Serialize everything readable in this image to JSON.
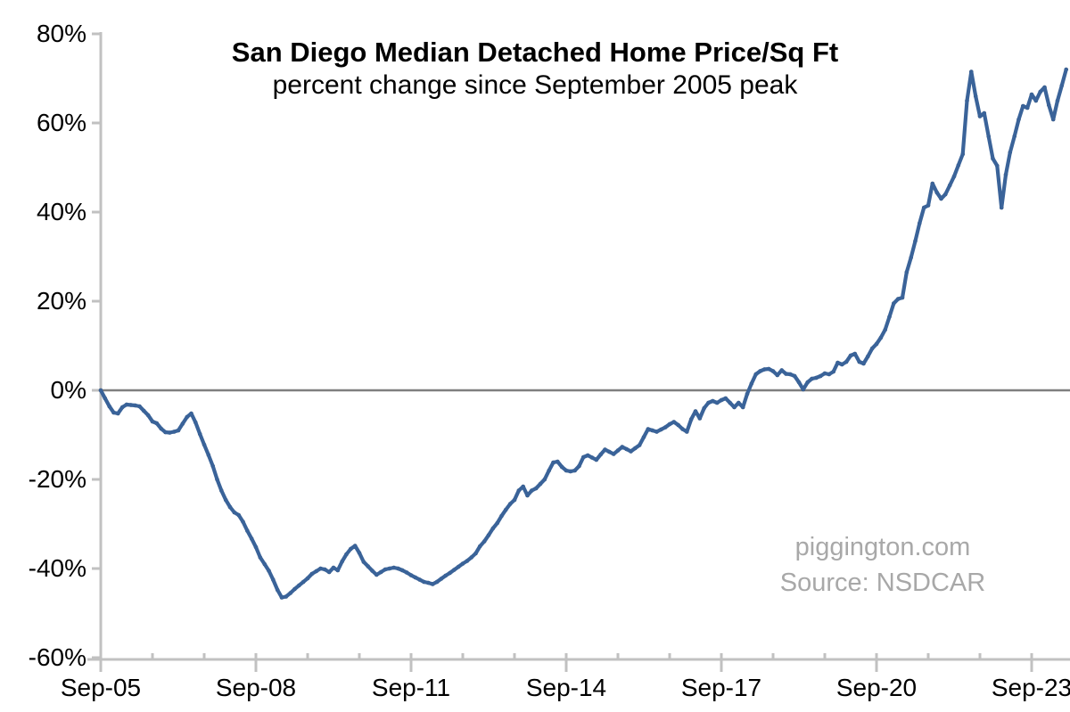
{
  "chart": {
    "title": "San Diego Median Detached Home Price/Sq Ft",
    "subtitle": "percent change since September 2005 peak",
    "watermark_line1": "piggington.com",
    "watermark_line2": "Source: NSDCAR"
  },
  "chart_data": {
    "type": "line",
    "title": "San Diego Median Detached Home Price/Sq Ft",
    "subtitle": "percent change since September 2005 peak",
    "x_start": "2005-09",
    "x_end": "2024-05",
    "x_frequency": "monthly",
    "x_tick_labels": [
      "Sep-05",
      "Sep-08",
      "Sep-11",
      "Sep-14",
      "Sep-17",
      "Sep-20",
      "Sep-23"
    ],
    "y_tick_labels": [
      "80%",
      "60%",
      "40%",
      "20%",
      "0%",
      "-20%",
      "-40%",
      "-60%"
    ],
    "ylim": [
      -60,
      80
    ],
    "y_unit": "%",
    "grid": "zero-line-only",
    "legend": "none",
    "line_color": "#3a6399",
    "marker_color": "#1f3a5e",
    "axis_color": "#c1c1c1",
    "zero_line_color": "#7f7f7f",
    "text_color": "#000000",
    "watermark_color": "#a8a8a8",
    "series": [
      {
        "name": "San Diego median detached home price/sq ft, % change vs Sep-2005 peak",
        "values": [
          0.0,
          -1.8,
          -3.6,
          -5.0,
          -5.2,
          -3.8,
          -3.2,
          -3.3,
          -3.4,
          -3.6,
          -4.6,
          -5.6,
          -7.0,
          -7.4,
          -8.6,
          -9.4,
          -9.5,
          -9.3,
          -9.0,
          -7.5,
          -6.0,
          -5.2,
          -7.2,
          -9.8,
          -12.2,
          -14.5,
          -17.0,
          -20.0,
          -22.5,
          -24.6,
          -26.2,
          -27.4,
          -28.0,
          -29.5,
          -31.5,
          -33.3,
          -35.2,
          -37.5,
          -39.0,
          -40.5,
          -42.5,
          -44.8,
          -46.5,
          -46.3,
          -45.5,
          -44.6,
          -43.8,
          -43.0,
          -42.2,
          -41.2,
          -40.6,
          -40.0,
          -40.2,
          -40.8,
          -39.8,
          -40.4,
          -38.4,
          -36.8,
          -35.6,
          -34.9,
          -36.5,
          -38.5,
          -39.5,
          -40.5,
          -41.4,
          -40.8,
          -40.2,
          -40.0,
          -39.8,
          -40.0,
          -40.4,
          -40.9,
          -41.5,
          -42.0,
          -42.5,
          -43.0,
          -43.2,
          -43.5,
          -43.0,
          -42.3,
          -41.6,
          -41.0,
          -40.3,
          -39.6,
          -38.9,
          -38.3,
          -37.5,
          -36.6,
          -35.0,
          -33.9,
          -32.5,
          -31.0,
          -29.8,
          -28.2,
          -26.8,
          -25.5,
          -24.6,
          -22.5,
          -21.6,
          -23.6,
          -22.5,
          -22.0,
          -21.0,
          -20.0,
          -18.0,
          -16.2,
          -16.0,
          -17.2,
          -18.0,
          -18.2,
          -18.0,
          -17.0,
          -15.0,
          -14.6,
          -15.1,
          -15.6,
          -14.4,
          -13.3,
          -13.8,
          -14.3,
          -13.5,
          -12.7,
          -13.2,
          -13.7,
          -13.0,
          -12.3,
          -10.5,
          -8.7,
          -9.0,
          -9.3,
          -8.8,
          -8.3,
          -7.6,
          -7.1,
          -7.8,
          -8.7,
          -9.3,
          -6.5,
          -4.7,
          -6.3,
          -4.0,
          -2.8,
          -2.4,
          -2.8,
          -2.2,
          -1.8,
          -2.8,
          -3.8,
          -2.8,
          -3.8,
          -0.8,
          1.5,
          3.6,
          4.3,
          4.7,
          4.8,
          4.3,
          3.4,
          4.5,
          3.7,
          3.6,
          3.2,
          1.8,
          0.2,
          1.8,
          2.6,
          2.8,
          3.2,
          3.8,
          3.6,
          4.2,
          6.2,
          5.8,
          6.4,
          7.8,
          8.2,
          6.4,
          6.0,
          7.6,
          9.4,
          10.4,
          11.8,
          13.6,
          16.5,
          19.5,
          20.5,
          20.8,
          26.5,
          29.8,
          33.5,
          37.5,
          41.0,
          41.5,
          46.4,
          44.4,
          43.0,
          44.0,
          46.0,
          48.0,
          50.5,
          53.0,
          65.0,
          71.5,
          66.0,
          61.5,
          62.2,
          57.0,
          52.0,
          50.4,
          41.0,
          48.4,
          53.4,
          57.0,
          60.8,
          63.8,
          63.4,
          66.4,
          65.0,
          67.0,
          68.0,
          64.0,
          60.8,
          65.0,
          68.4,
          72.0
        ]
      }
    ]
  }
}
